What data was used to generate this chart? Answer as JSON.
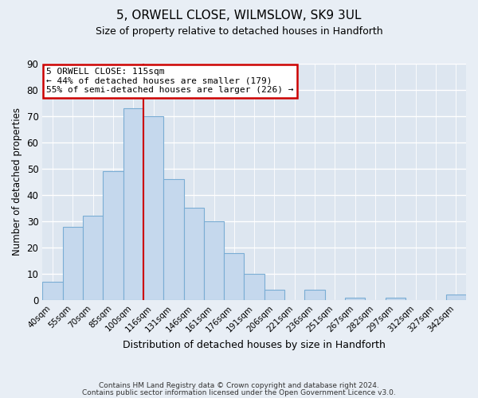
{
  "title": "5, ORWELL CLOSE, WILMSLOW, SK9 3UL",
  "subtitle": "Size of property relative to detached houses in Handforth",
  "xlabel": "Distribution of detached houses by size in Handforth",
  "ylabel": "Number of detached properties",
  "bin_labels": [
    "40sqm",
    "55sqm",
    "70sqm",
    "85sqm",
    "100sqm",
    "116sqm",
    "131sqm",
    "146sqm",
    "161sqm",
    "176sqm",
    "191sqm",
    "206sqm",
    "221sqm",
    "236sqm",
    "251sqm",
    "267sqm",
    "282sqm",
    "297sqm",
    "312sqm",
    "327sqm",
    "342sqm"
  ],
  "bar_heights": [
    7,
    28,
    32,
    49,
    73,
    70,
    46,
    35,
    30,
    18,
    10,
    4,
    0,
    4,
    0,
    1,
    0,
    1,
    0,
    0,
    2
  ],
  "bar_color": "#c5d8ed",
  "bar_edge_color": "#7aadd4",
  "highlight_line_color": "#cc0000",
  "annotation_title": "5 ORWELL CLOSE: 115sqm",
  "annotation_line1": "← 44% of detached houses are smaller (179)",
  "annotation_line2": "55% of semi-detached houses are larger (226) →",
  "annotation_box_color": "#ffffff",
  "annotation_box_edge_color": "#cc0000",
  "ylim": [
    0,
    90
  ],
  "yticks": [
    0,
    10,
    20,
    30,
    40,
    50,
    60,
    70,
    80,
    90
  ],
  "footer1": "Contains HM Land Registry data © Crown copyright and database right 2024.",
  "footer2": "Contains public sector information licensed under the Open Government Licence v3.0.",
  "background_color": "#e8eef5",
  "plot_background_color": "#dde6f0"
}
